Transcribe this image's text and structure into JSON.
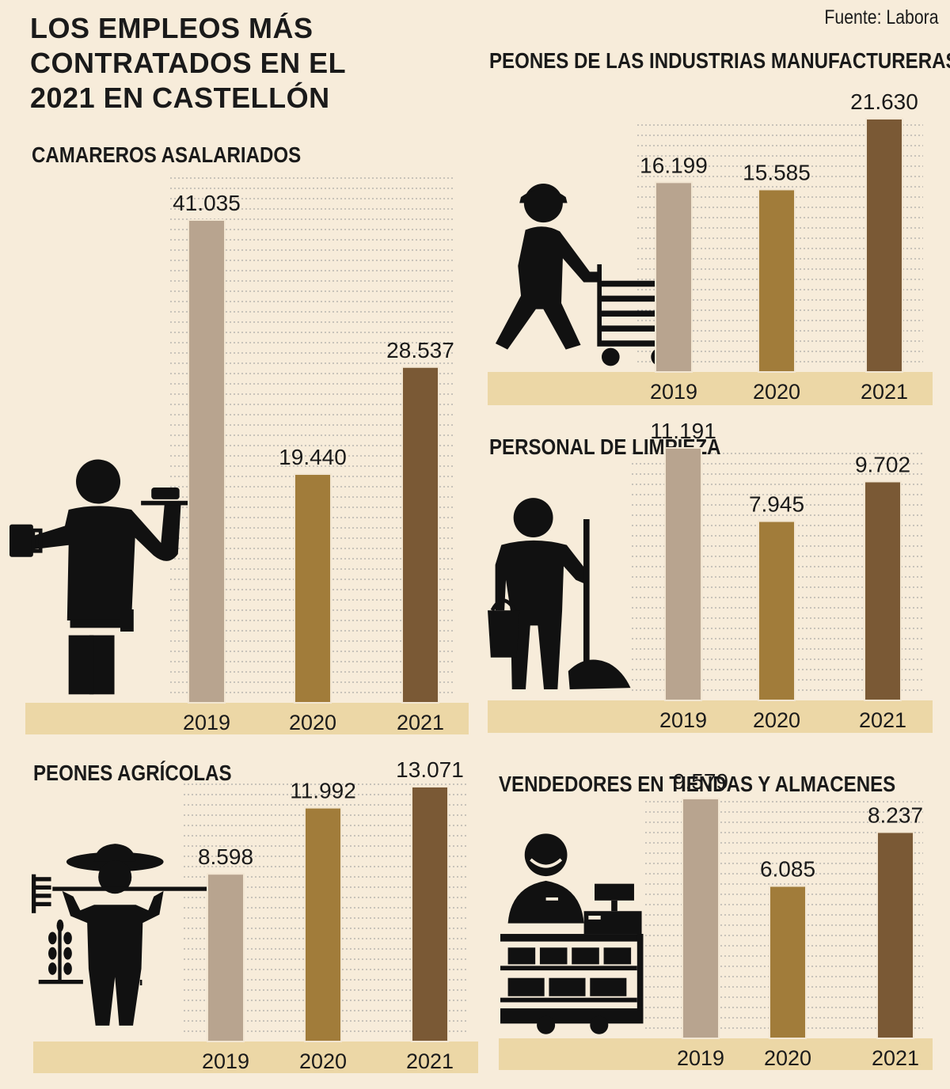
{
  "title": {
    "lines": [
      "LOS EMPLEOS MÁS",
      "CONTRATADOS EN EL",
      "2021 EN CASTELLÓN"
    ]
  },
  "source": "Fuente: Labora",
  "colors": {
    "background": "#f7ecda",
    "band": "#ecd7a6",
    "bar_2019": "#b8a48f",
    "bar_2020": "#a17c3a",
    "bar_2021": "#7a5935",
    "icon": "#111111",
    "gridline": "#9a9a9a"
  },
  "icons": [
    "waiter-icon",
    "factory-worker-cart-icon",
    "cleaner-mop-icon",
    "farmer-rake-icon",
    "shop-vendor-icon"
  ],
  "chart_data": [
    {
      "type": "bar",
      "title": "CAMAREROS ASALARIADOS",
      "categories": [
        "2019",
        "2020",
        "2021"
      ],
      "values": [
        41035,
        19440,
        28537
      ],
      "value_labels": [
        "41.035",
        "19.440",
        "28.537"
      ],
      "icon": "waiter-icon"
    },
    {
      "type": "bar",
      "title": "PEONES DE LAS INDUSTRIAS MANUFACTURERAS",
      "categories": [
        "2019",
        "2020",
        "2021"
      ],
      "values": [
        16199,
        15585,
        21630
      ],
      "value_labels": [
        "16.199",
        "15.585",
        "21.630"
      ],
      "icon": "factory-worker-cart-icon"
    },
    {
      "type": "bar",
      "title": "PERSONAL DE LIMPIEZA",
      "categories": [
        "2019",
        "2020",
        "2021"
      ],
      "values": [
        11191,
        7945,
        9702
      ],
      "value_labels": [
        "11.191",
        "7.945",
        "9.702"
      ],
      "icon": "cleaner-mop-icon"
    },
    {
      "type": "bar",
      "title": "PEONES AGRÍCOLAS",
      "categories": [
        "2019",
        "2020",
        "2021"
      ],
      "values": [
        8598,
        11992,
        13071
      ],
      "value_labels": [
        "8.598",
        "11.992",
        "13.071"
      ],
      "icon": "farmer-rake-icon"
    },
    {
      "type": "bar",
      "title": "VENDEDORES EN TIENDAS Y ALMACENES",
      "categories": [
        "2019",
        "2020",
        "2021"
      ],
      "values": [
        9579,
        6085,
        8237
      ],
      "value_labels": [
        "9.579",
        "6.085",
        "8.237"
      ],
      "icon": "shop-vendor-icon"
    }
  ]
}
